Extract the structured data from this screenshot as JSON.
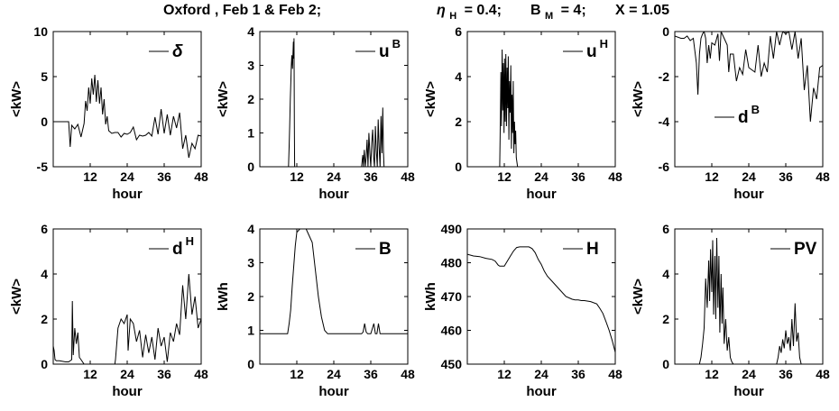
{
  "title": {
    "location": "Oxford , Feb 1 & Feb 2;",
    "eta_sym": "η",
    "eta_sub": "H",
    "eta_val": "= 0.4;",
    "b_sym": "B",
    "b_sub": "M",
    "b_val": "= 4;",
    "x_part": "X = 1.05"
  },
  "chart_data": [
    {
      "type": "line",
      "legend": "δ",
      "legend_sup": "",
      "legend_italic": true,
      "xlabel": "hour",
      "ylabel": "<kW>",
      "xlim": [
        0,
        48
      ],
      "xticks": [
        "12",
        "24",
        "36",
        "48"
      ],
      "ylim": [
        -5,
        10
      ],
      "yticks": [
        "-5",
        "0",
        "5",
        "10"
      ],
      "series": [
        {
          "x": [
            0,
            3,
            5,
            5.5,
            6,
            7,
            8,
            9,
            10,
            10.5,
            11,
            11.5,
            12,
            12.5,
            13,
            13.5,
            14,
            14.5,
            15,
            15.5,
            16,
            16.5,
            17,
            17.5,
            18,
            19,
            20,
            21,
            22,
            23,
            24,
            25,
            26,
            27,
            28,
            29,
            30,
            31,
            32,
            33,
            34,
            35,
            36,
            37,
            38,
            39,
            40,
            41,
            42,
            43,
            44,
            45,
            46,
            47,
            48
          ],
          "y": [
            0,
            0,
            0,
            -2.8,
            -0.4,
            -0.8,
            -0.3,
            -1.7,
            -0.2,
            2.3,
            1.2,
            3.8,
            2.0,
            4.8,
            3.0,
            5.2,
            2.2,
            4.6,
            2.0,
            3.8,
            0.8,
            2.5,
            -0.3,
            0.6,
            -1.0,
            -1.3,
            -1.2,
            -1.2,
            -1.7,
            -1.3,
            -1.4,
            -1.2,
            -0.6,
            -2.0,
            -1.5,
            -1.6,
            -1.5,
            -1.2,
            -1.6,
            0.5,
            -1.4,
            1.4,
            -1.3,
            0.8,
            -1.5,
            0.6,
            -0.7,
            1.0,
            -3.0,
            -1.5,
            -4.0,
            -2.4,
            -3.0,
            -1.5,
            -1.6
          ]
        }
      ]
    },
    {
      "type": "line",
      "legend": "u",
      "legend_sup": "B",
      "legend_italic": false,
      "xlabel": "hour",
      "ylabel": "<kW>",
      "xlim": [
        0,
        48
      ],
      "xticks": [
        "12",
        "24",
        "36",
        "48"
      ],
      "ylim": [
        0,
        4
      ],
      "yticks": [
        "0",
        "1",
        "2",
        "3",
        "4"
      ],
      "series": [
        {
          "x": [
            0,
            9.3,
            9.5,
            9.7,
            9.9,
            10.1,
            10.2,
            10.4,
            10.6,
            10.9,
            11.0,
            11.1,
            11.2,
            11.3,
            48
          ],
          "y": [
            0,
            0,
            0.6,
            1.2,
            2.0,
            2.6,
            3.0,
            3.3,
            2.9,
            3.7,
            3.2,
            3.8,
            1.2,
            0,
            0
          ]
        },
        {
          "x": [
            33,
            33.4,
            33.6,
            33.9,
            34.2,
            34.5,
            34.8,
            35.1,
            35.4,
            35.7,
            36.0,
            36.3,
            36.6,
            36.9,
            37.2,
            37.5,
            37.8,
            38.1,
            38.4,
            38.7,
            39.0,
            39.3,
            39.6,
            39.9,
            40.1,
            40.3
          ],
          "y": [
            0,
            0.35,
            0,
            0.5,
            0,
            0.3,
            0.8,
            0,
            1.0,
            0.4,
            0,
            0.7,
            1.1,
            0.3,
            0,
            1.2,
            0.5,
            0,
            1.4,
            0.6,
            0,
            1.5,
            0.4,
            1.75,
            0.5,
            0
          ]
        }
      ]
    },
    {
      "type": "line",
      "legend": "u",
      "legend_sup": "H",
      "legend_italic": false,
      "xlabel": "hour",
      "ylabel": "<kW>",
      "xlim": [
        0,
        48
      ],
      "xticks": [
        "12",
        "24",
        "36",
        "48"
      ],
      "ylim": [
        0,
        6
      ],
      "yticks": [
        "0",
        "2",
        "4",
        "6"
      ],
      "series": [
        {
          "x": [
            0,
            10.5,
            10.7,
            10.9,
            11.1,
            11.3,
            11.5,
            11.7,
            11.9,
            12.1,
            12.3,
            12.5,
            12.7,
            12.9,
            13.1,
            13.3,
            13.5,
            13.7,
            13.9,
            14.1,
            14.3,
            14.5,
            14.7,
            14.9,
            15.1,
            15.3,
            15.5,
            15.7,
            15.9,
            16.1,
            16.3,
            48
          ],
          "y": [
            0,
            0,
            2.0,
            4.2,
            1.8,
            5.2,
            2.5,
            4.6,
            1.5,
            4.8,
            2.0,
            5.0,
            1.8,
            4.4,
            2.6,
            4.9,
            1.2,
            3.8,
            2.4,
            4.5,
            0.8,
            3.2,
            1.5,
            3.8,
            0.6,
            2.0,
            1.0,
            1.6,
            0.4,
            0.2,
            0,
            0
          ]
        }
      ]
    },
    {
      "type": "line",
      "legend": "d",
      "legend_sup": "B",
      "legend_italic": false,
      "xlabel": "hour",
      "ylabel": "<kW>",
      "xlim": [
        0,
        48
      ],
      "xticks": [
        "12",
        "24",
        "36",
        "48"
      ],
      "ylim": [
        -6,
        0
      ],
      "yticks": [
        "-6",
        "-4",
        "-2",
        "0"
      ],
      "series": [
        {
          "x": [
            0,
            2,
            3,
            4,
            5,
            6,
            7,
            7.5,
            8,
            8.5,
            9,
            9.5,
            10,
            10.5,
            11,
            11.5,
            12,
            13,
            14,
            14.5,
            15,
            16,
            17,
            17.5,
            18,
            19,
            20,
            21,
            22,
            23,
            24,
            25,
            26,
            27,
            28,
            29,
            30,
            31,
            32,
            33,
            34,
            35,
            36,
            37,
            38,
            39,
            40,
            41,
            42,
            43,
            44,
            45,
            46,
            47,
            48
          ],
          "y": [
            -0.2,
            -0.3,
            -0.3,
            -0.2,
            -0.4,
            -0.3,
            -1.4,
            -2.8,
            -1.0,
            -0.3,
            -0.1,
            0,
            -0.3,
            -1.4,
            -0.6,
            -1.2,
            -0.5,
            -0.6,
            -0.1,
            -1.3,
            0,
            -0.3,
            -0.6,
            -1.8,
            -1.0,
            -1.0,
            -2.2,
            -1.6,
            -1.9,
            -0.8,
            -1.6,
            -1.7,
            -1.8,
            -0.6,
            -2.0,
            -1.4,
            -1.8,
            -0.2,
            -1.2,
            0,
            -0.6,
            0,
            -0.1,
            0,
            -0.8,
            0,
            -1.2,
            -0.3,
            -2.6,
            -1.5,
            -4.0,
            -2.5,
            -3.0,
            -1.6,
            -1.5
          ]
        }
      ]
    },
    {
      "type": "line",
      "legend": "d",
      "legend_sup": "H",
      "legend_italic": false,
      "xlabel": "hour",
      "ylabel": "<kW>",
      "xlim": [
        0,
        48
      ],
      "xticks": [
        "12",
        "24",
        "36",
        "48"
      ],
      "ylim": [
        0,
        6
      ],
      "yticks": [
        "0",
        "2",
        "4",
        "6"
      ],
      "series": [
        {
          "x": [
            0,
            0.3,
            0.6,
            1,
            2,
            4,
            5,
            6,
            6.2,
            6.5,
            7,
            7.5,
            8,
            8.5,
            9,
            10,
            18,
            19,
            20,
            20.2,
            21,
            22,
            23,
            24,
            24.3,
            25,
            26,
            27,
            28,
            29,
            30,
            31,
            32,
            33,
            34,
            35,
            36,
            37,
            38,
            39,
            40,
            41,
            42,
            43,
            44,
            45,
            46,
            47,
            48
          ],
          "y": [
            0.8,
            0.6,
            0.2,
            0.15,
            0.15,
            0.1,
            0.1,
            0.2,
            2.8,
            0.4,
            1.6,
            0.9,
            1.4,
            0.3,
            0.2,
            0,
            0,
            0,
            0,
            0.2,
            1.6,
            2.0,
            1.8,
            2.2,
            0.6,
            2.0,
            1.8,
            1.0,
            1.5,
            0.3,
            1.3,
            0.5,
            1.2,
            0.2,
            1.6,
            0.8,
            1.2,
            0.1,
            1.4,
            1.0,
            1.8,
            1.3,
            3.5,
            2.0,
            4.0,
            2.2,
            3.0,
            1.6,
            2.0
          ]
        }
      ]
    },
    {
      "type": "line",
      "legend": "B",
      "legend_sup": "",
      "legend_italic": false,
      "xlabel": "hour",
      "ylabel": "kWh",
      "xlim": [
        0,
        48
      ],
      "xticks": [
        "12",
        "24",
        "36",
        "48"
      ],
      "ylim": [
        0,
        4
      ],
      "yticks": [
        "0",
        "1",
        "2",
        "3",
        "4"
      ],
      "series": [
        {
          "x": [
            0,
            8,
            9,
            9.5,
            10,
            10.5,
            11,
            11.5,
            12,
            13,
            14,
            15,
            16,
            17,
            18,
            19,
            20,
            21,
            22,
            24,
            33,
            33.5,
            34,
            34.5,
            35,
            36,
            37,
            37.5,
            38,
            38.5,
            39,
            39.5,
            40,
            48
          ],
          "y": [
            0.9,
            0.9,
            0.9,
            1.2,
            1.6,
            2.3,
            2.9,
            3.5,
            3.9,
            4.0,
            4.0,
            4.0,
            3.8,
            3.6,
            2.8,
            2.0,
            1.4,
            1.0,
            0.9,
            0.9,
            0.9,
            0.95,
            1.2,
            0.95,
            0.9,
            0.9,
            1.2,
            0.9,
            0.9,
            1.2,
            0.9,
            0.9,
            0.9,
            0.9
          ]
        }
      ]
    },
    {
      "type": "line",
      "legend": "H",
      "legend_sup": "",
      "legend_italic": false,
      "xlabel": "hour",
      "ylabel": "kWh",
      "xlim": [
        0,
        48
      ],
      "xticks": [
        "12",
        "24",
        "36",
        "48"
      ],
      "ylim": [
        450,
        490
      ],
      "yticks": [
        "450",
        "460",
        "470",
        "480",
        "490"
      ],
      "series": [
        {
          "x": [
            0,
            2,
            4,
            6,
            8,
            9,
            10,
            10.5,
            12,
            13,
            14,
            15,
            16,
            17,
            18,
            19,
            20,
            21,
            22,
            23,
            24,
            25,
            26,
            28,
            30,
            32,
            34,
            35,
            36,
            37,
            38,
            40,
            42,
            43,
            44,
            45,
            46,
            47,
            48
          ],
          "y": [
            482.5,
            482,
            481.8,
            481.3,
            481,
            480.5,
            479.3,
            479,
            479,
            480.5,
            482,
            483.5,
            484.5,
            484.7,
            484.7,
            484.7,
            484.7,
            484.2,
            483,
            481,
            479.5,
            477.5,
            476,
            474,
            472,
            470,
            469.2,
            469,
            469,
            468.8,
            468.8,
            468.5,
            467.8,
            466.5,
            465,
            462.5,
            460,
            457,
            453.5
          ]
        }
      ]
    },
    {
      "type": "line",
      "legend": "PV",
      "legend_sup": "",
      "legend_italic": false,
      "xlabel": "hour",
      "ylabel": "<kW>",
      "xlim": [
        0,
        48
      ],
      "xticks": [
        "12",
        "24",
        "36",
        "48"
      ],
      "ylim": [
        0,
        6
      ],
      "yticks": [
        "0",
        "2",
        "4",
        "6"
      ],
      "series": [
        {
          "x": [
            0,
            8,
            8.5,
            9,
            9.5,
            10,
            10.5,
            11,
            11.3,
            11.6,
            12,
            12.3,
            12.6,
            13,
            13.3,
            13.6,
            14,
            14.3,
            14.6,
            15,
            15.3,
            15.6,
            16,
            16.5,
            17,
            17.5,
            18,
            18.5,
            19,
            33,
            33.5,
            34,
            34.5,
            35,
            35.5,
            36,
            36.5,
            37,
            37.5,
            38,
            38.5,
            39,
            39.5,
            40,
            40.5,
            41,
            48
          ],
          "y": [
            0,
            0,
            0.3,
            0.9,
            1.6,
            3.8,
            2.5,
            4.6,
            2.8,
            5.1,
            3.2,
            5.5,
            2.2,
            4.8,
            2.0,
            5.6,
            2.5,
            4.8,
            1.4,
            4.0,
            1.8,
            3.4,
            0.9,
            2.0,
            0.6,
            1.2,
            0.3,
            0.1,
            0,
            0,
            0.3,
            0.8,
            0.5,
            1.1,
            0.7,
            1.5,
            0.9,
            1.2,
            0.6,
            2.0,
            0.8,
            2.7,
            1.0,
            1.4,
            0.3,
            0,
            0
          ]
        }
      ]
    }
  ]
}
